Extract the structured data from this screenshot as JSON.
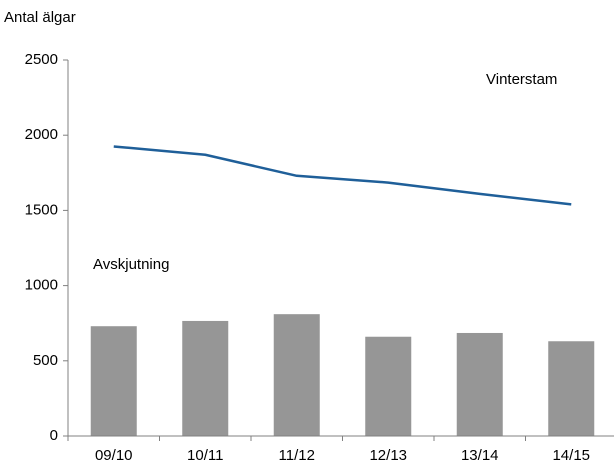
{
  "chart_data": {
    "type": "combo",
    "y_label": "Antal älgar",
    "annotations": [
      "Vinterstam",
      "Avskjutning"
    ],
    "categories": [
      "09/10",
      "10/11",
      "11/12",
      "12/13",
      "13/14",
      "14/15"
    ],
    "series": [
      {
        "name": "Avskjutning",
        "type": "bar",
        "color": "#969696",
        "values": [
          730,
          765,
          810,
          660,
          685,
          630
        ]
      },
      {
        "name": "Vinterstam",
        "type": "line",
        "color": "#1f5f99",
        "values": [
          1925,
          1870,
          1730,
          1685,
          1610,
          1540
        ]
      }
    ],
    "ylim": [
      0,
      2500
    ],
    "yticks": [
      0,
      500,
      1000,
      1500,
      2000,
      2500
    ],
    "grid": false
  }
}
